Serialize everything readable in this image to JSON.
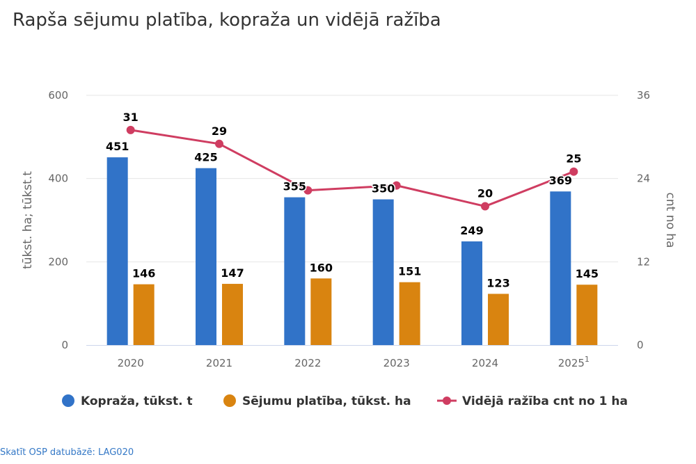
{
  "title": "Rapša sējumu platība, kopraža un vidējā ražība",
  "source_link": "Skatīt OSP datubāzē: LAG020",
  "chart_data": {
    "type": "bar",
    "categories": [
      "2020",
      "2021",
      "2022",
      "2023",
      "2024",
      "2025"
    ],
    "category_superscripts": [
      "",
      "",
      "",
      "",
      "",
      "1"
    ],
    "series": [
      {
        "name": "Kopraža, tūkst. t",
        "type": "bar",
        "axis": "left",
        "color": "#3173c8",
        "values": [
          451,
          425,
          355,
          350,
          249,
          369
        ]
      },
      {
        "name": "Sējumu platība, tūkst. ha",
        "type": "bar",
        "axis": "left",
        "color": "#d98410",
        "values": [
          146,
          147,
          160,
          151,
          123,
          145
        ]
      },
      {
        "name": "Vidējā ražība cnt no 1 ha",
        "type": "line",
        "axis": "right",
        "color": "#cf3d61",
        "values": [
          31,
          29,
          22.3,
          23,
          20,
          25
        ],
        "labels": [
          "31",
          "29",
          "",
          "",
          "20",
          "25"
        ]
      }
    ],
    "y_left": {
      "title": "tūkst. ha; tūkst.t",
      "min": 0,
      "max": 600,
      "ticks": [
        0,
        200,
        400,
        600
      ]
    },
    "y_right": {
      "title": "cnt no ha",
      "min": 0,
      "max": 36,
      "ticks": [
        0,
        12,
        24,
        36
      ]
    },
    "legend_position": "bottom"
  }
}
